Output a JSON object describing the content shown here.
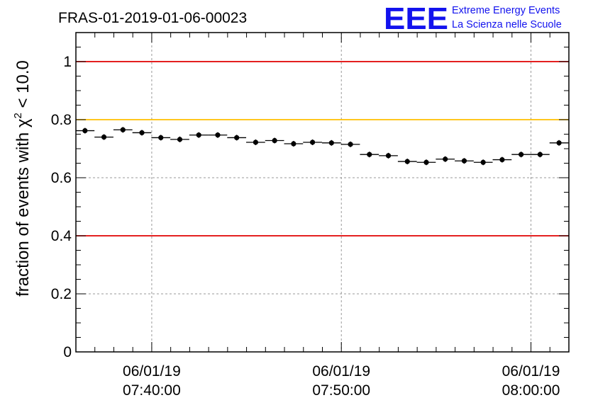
{
  "header": {
    "run_id": "FRAS-01-2019-01-06-00023",
    "logo_text": "EEE",
    "logo_line1": "Extreme Energy Events",
    "logo_line2": "La Scienza nelle Scuole"
  },
  "colors": {
    "red_line": "#e00000",
    "yellow_line": "#ffbf00",
    "markers": "#000000",
    "grid": "#9a9a9a",
    "logo": "#1212ee"
  },
  "chart_data": {
    "type": "scatter",
    "title": "FRAS-01-2019-01-06-00023",
    "xlabel": "",
    "ylabel_prefix": "fraction of events with ",
    "ylabel_symbol": "χ",
    "ylabel_exp": "2",
    "ylabel_suffix": " < 10.0",
    "xlim_minutes": [
      0,
      32.5
    ],
    "bin_width_minutes": 1.25,
    "ylim": [
      0,
      1.1
    ],
    "grid": true,
    "y_ticks": [
      {
        "v": 0,
        "label": "0"
      },
      {
        "v": 0.2,
        "label": "0.2"
      },
      {
        "v": 0.4,
        "label": "0.4"
      },
      {
        "v": 0.6,
        "label": "0.6"
      },
      {
        "v": 0.8,
        "label": "0.8"
      },
      {
        "v": 1.0,
        "label": "1"
      }
    ],
    "x_ticks": [
      {
        "t": 5,
        "date": "06/01/19",
        "time": "07:40:00"
      },
      {
        "t": 17.5,
        "date": "06/01/19",
        "time": "07:50:00"
      },
      {
        "t": 30,
        "date": "06/01/19",
        "time": "08:00:00"
      }
    ],
    "reference_lines": [
      {
        "y": 1.0,
        "color": "#e00000"
      },
      {
        "y": 0.8,
        "color": "#ffbf00"
      },
      {
        "y": 0.4,
        "color": "#e00000"
      }
    ],
    "x_center_minutes": [
      0.6,
      1.85,
      3.1,
      4.35,
      5.6,
      6.85,
      8.1,
      9.35,
      10.6,
      11.85,
      13.1,
      14.35,
      15.6,
      16.85,
      18.1,
      19.35,
      20.6,
      21.85,
      23.1,
      24.35,
      25.6,
      26.85,
      28.1,
      29.35,
      30.6,
      31.85
    ],
    "values": [
      0.762,
      0.74,
      0.765,
      0.755,
      0.738,
      0.732,
      0.747,
      0.747,
      0.738,
      0.722,
      0.728,
      0.717,
      0.722,
      0.72,
      0.715,
      0.68,
      0.676,
      0.656,
      0.653,
      0.664,
      0.658,
      0.653,
      0.662,
      0.68,
      0.68,
      0.72
    ]
  }
}
